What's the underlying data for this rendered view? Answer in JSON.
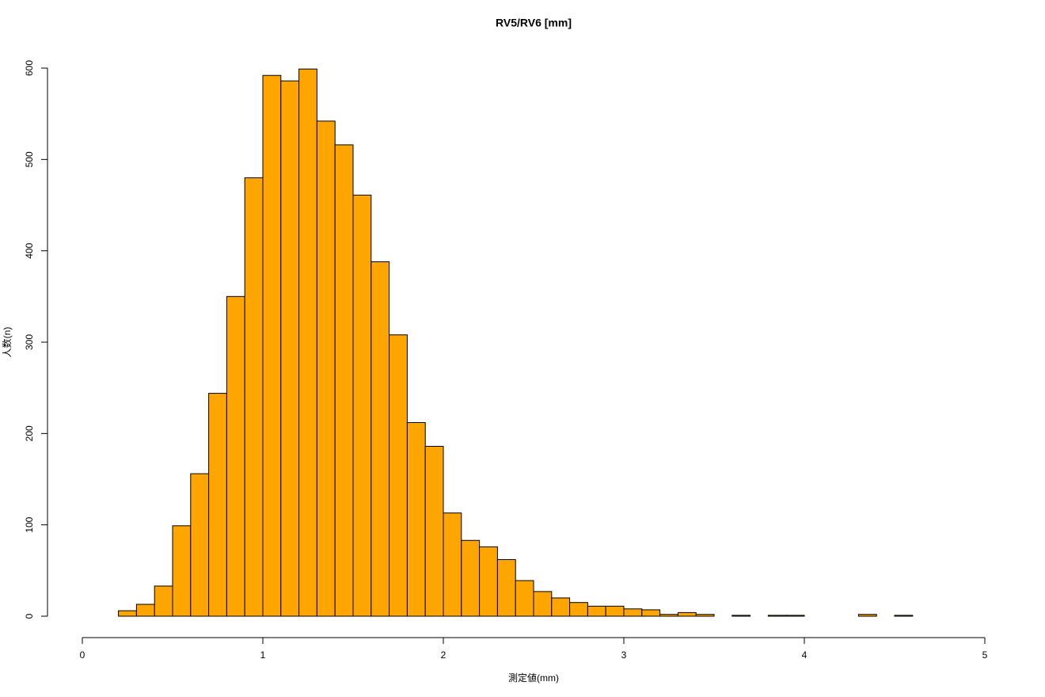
{
  "chart_data": {
    "type": "histogram",
    "title": "RV5/RV6 [mm]",
    "x_label": "測定値(mm)",
    "y_label": "人数(n)",
    "bins": [
      0.2,
      0.3,
      0.4,
      0.5,
      0.6,
      0.7,
      0.8,
      0.9,
      1.0,
      1.1,
      1.2,
      1.3,
      1.4,
      1.5,
      1.6,
      1.7,
      1.8,
      1.9,
      2.0,
      2.1,
      2.2,
      2.3,
      2.4,
      2.5,
      2.6,
      2.7,
      2.8,
      2.9,
      3.0,
      3.1,
      3.2,
      3.3,
      3.4,
      3.5,
      3.6,
      3.7,
      3.8,
      3.9,
      4.0,
      4.1,
      4.2,
      4.3,
      4.4,
      4.5,
      4.6
    ],
    "values": [
      6,
      13,
      33,
      99,
      156,
      244,
      350,
      480,
      592,
      586,
      599,
      542,
      516,
      461,
      388,
      308,
      212,
      186,
      113,
      83,
      76,
      62,
      39,
      27,
      20,
      15,
      11,
      11,
      8,
      7,
      2,
      4,
      2,
      0,
      1,
      0,
      1,
      1,
      0,
      0,
      0,
      2,
      0,
      1
    ],
    "color": "#FFA500",
    "xlim": [
      0,
      5
    ],
    "xticks": [
      0,
      1,
      2,
      3,
      4,
      5
    ],
    "ylim": [
      0,
      600
    ],
    "yticks": [
      0,
      100,
      200,
      300,
      400,
      500,
      600
    ]
  }
}
